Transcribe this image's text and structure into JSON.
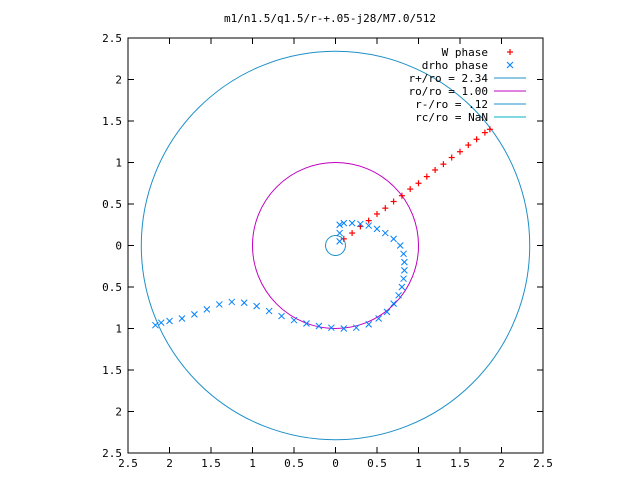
{
  "chart_data": {
    "type": "scatter",
    "title": "m1/n1.5/q1.5/r-+.05-j28/M7.0/512",
    "xlim": [
      -2.5,
      2.5
    ],
    "ylim": [
      -2.5,
      2.5
    ],
    "x_ticks": [
      {
        "v": -2.5,
        "label": "2.5"
      },
      {
        "v": -2,
        "label": "2"
      },
      {
        "v": -1.5,
        "label": "1.5"
      },
      {
        "v": -1,
        "label": "1"
      },
      {
        "v": -0.5,
        "label": "0.5"
      },
      {
        "v": 0,
        "label": "0"
      },
      {
        "v": 0.5,
        "label": "0.5"
      },
      {
        "v": 1,
        "label": "1"
      },
      {
        "v": 1.5,
        "label": "1.5"
      },
      {
        "v": 2,
        "label": "2"
      },
      {
        "v": 2.5,
        "label": "2.5"
      }
    ],
    "y_ticks": [
      {
        "v": 2.5,
        "label": "2.5"
      },
      {
        "v": 2,
        "label": "2"
      },
      {
        "v": 1.5,
        "label": "1.5"
      },
      {
        "v": 1,
        "label": "1"
      },
      {
        "v": 0.5,
        "label": "0.5"
      },
      {
        "v": 0,
        "label": "0"
      },
      {
        "v": -0.5,
        "label": "0.5"
      },
      {
        "v": -1,
        "label": "1"
      },
      {
        "v": -1.5,
        "label": "1.5"
      },
      {
        "v": -2,
        "label": "2"
      },
      {
        "v": -2.5,
        "label": "2.5"
      }
    ],
    "legend_position": "top-right",
    "series": [
      {
        "name": "W phase",
        "kind": "points",
        "marker": "plus",
        "color": "#ff0000",
        "x": [
          0.1,
          0.2,
          0.3,
          0.4,
          0.5,
          0.6,
          0.7,
          0.8,
          0.9,
          1.0,
          1.1,
          1.2,
          1.3,
          1.4,
          1.5,
          1.6,
          1.7,
          1.8,
          1.86
        ],
        "y": [
          0.08,
          0.15,
          0.23,
          0.3,
          0.38,
          0.45,
          0.53,
          0.6,
          0.68,
          0.75,
          0.83,
          0.91,
          0.98,
          1.06,
          1.13,
          1.21,
          1.28,
          1.36,
          1.4
        ]
      },
      {
        "name": "drho phase",
        "kind": "points",
        "marker": "cross",
        "color": "#0080ff",
        "x": [
          0.05,
          0.05,
          0.05,
          0.1,
          0.2,
          0.3,
          0.4,
          0.5,
          0.6,
          0.7,
          0.78,
          0.82,
          0.83,
          0.83,
          0.82,
          0.8,
          0.76,
          0.7,
          0.62,
          0.52,
          0.4,
          0.25,
          0.1,
          -0.05,
          -0.2,
          -0.35,
          -0.5,
          -0.65,
          -0.8,
          -0.95,
          -1.1,
          -1.25,
          -1.4,
          -1.55,
          -1.7,
          -1.85,
          -2.0,
          -2.1,
          -2.17
        ],
        "y": [
          0.05,
          0.15,
          0.25,
          0.27,
          0.27,
          0.26,
          0.24,
          0.2,
          0.15,
          0.08,
          0.0,
          -0.1,
          -0.2,
          -0.3,
          -0.4,
          -0.5,
          -0.6,
          -0.7,
          -0.8,
          -0.88,
          -0.95,
          -0.99,
          -1.0,
          -0.99,
          -0.97,
          -0.94,
          -0.9,
          -0.85,
          -0.79,
          -0.73,
          -0.69,
          -0.68,
          -0.71,
          -0.77,
          -0.83,
          -0.88,
          -0.91,
          -0.93,
          -0.96
        ]
      },
      {
        "name": "r+/ro = 2.34",
        "kind": "circle",
        "radius": 2.34,
        "cx": 0,
        "cy": 0,
        "color": "#1e90c8"
      },
      {
        "name": "ro/ro = 1.00",
        "kind": "circle",
        "radius": 1.0,
        "cx": 0,
        "cy": 0,
        "color": "#c000c0"
      },
      {
        "name": "r-/ro =  .12",
        "kind": "circle",
        "radius": 0.12,
        "cx": 0,
        "cy": 0,
        "color": "#1e90c8"
      },
      {
        "name": "rc/ro = NaN",
        "kind": "circle",
        "radius": null,
        "cx": 0,
        "cy": 0,
        "color": "#00b0c0"
      }
    ]
  }
}
